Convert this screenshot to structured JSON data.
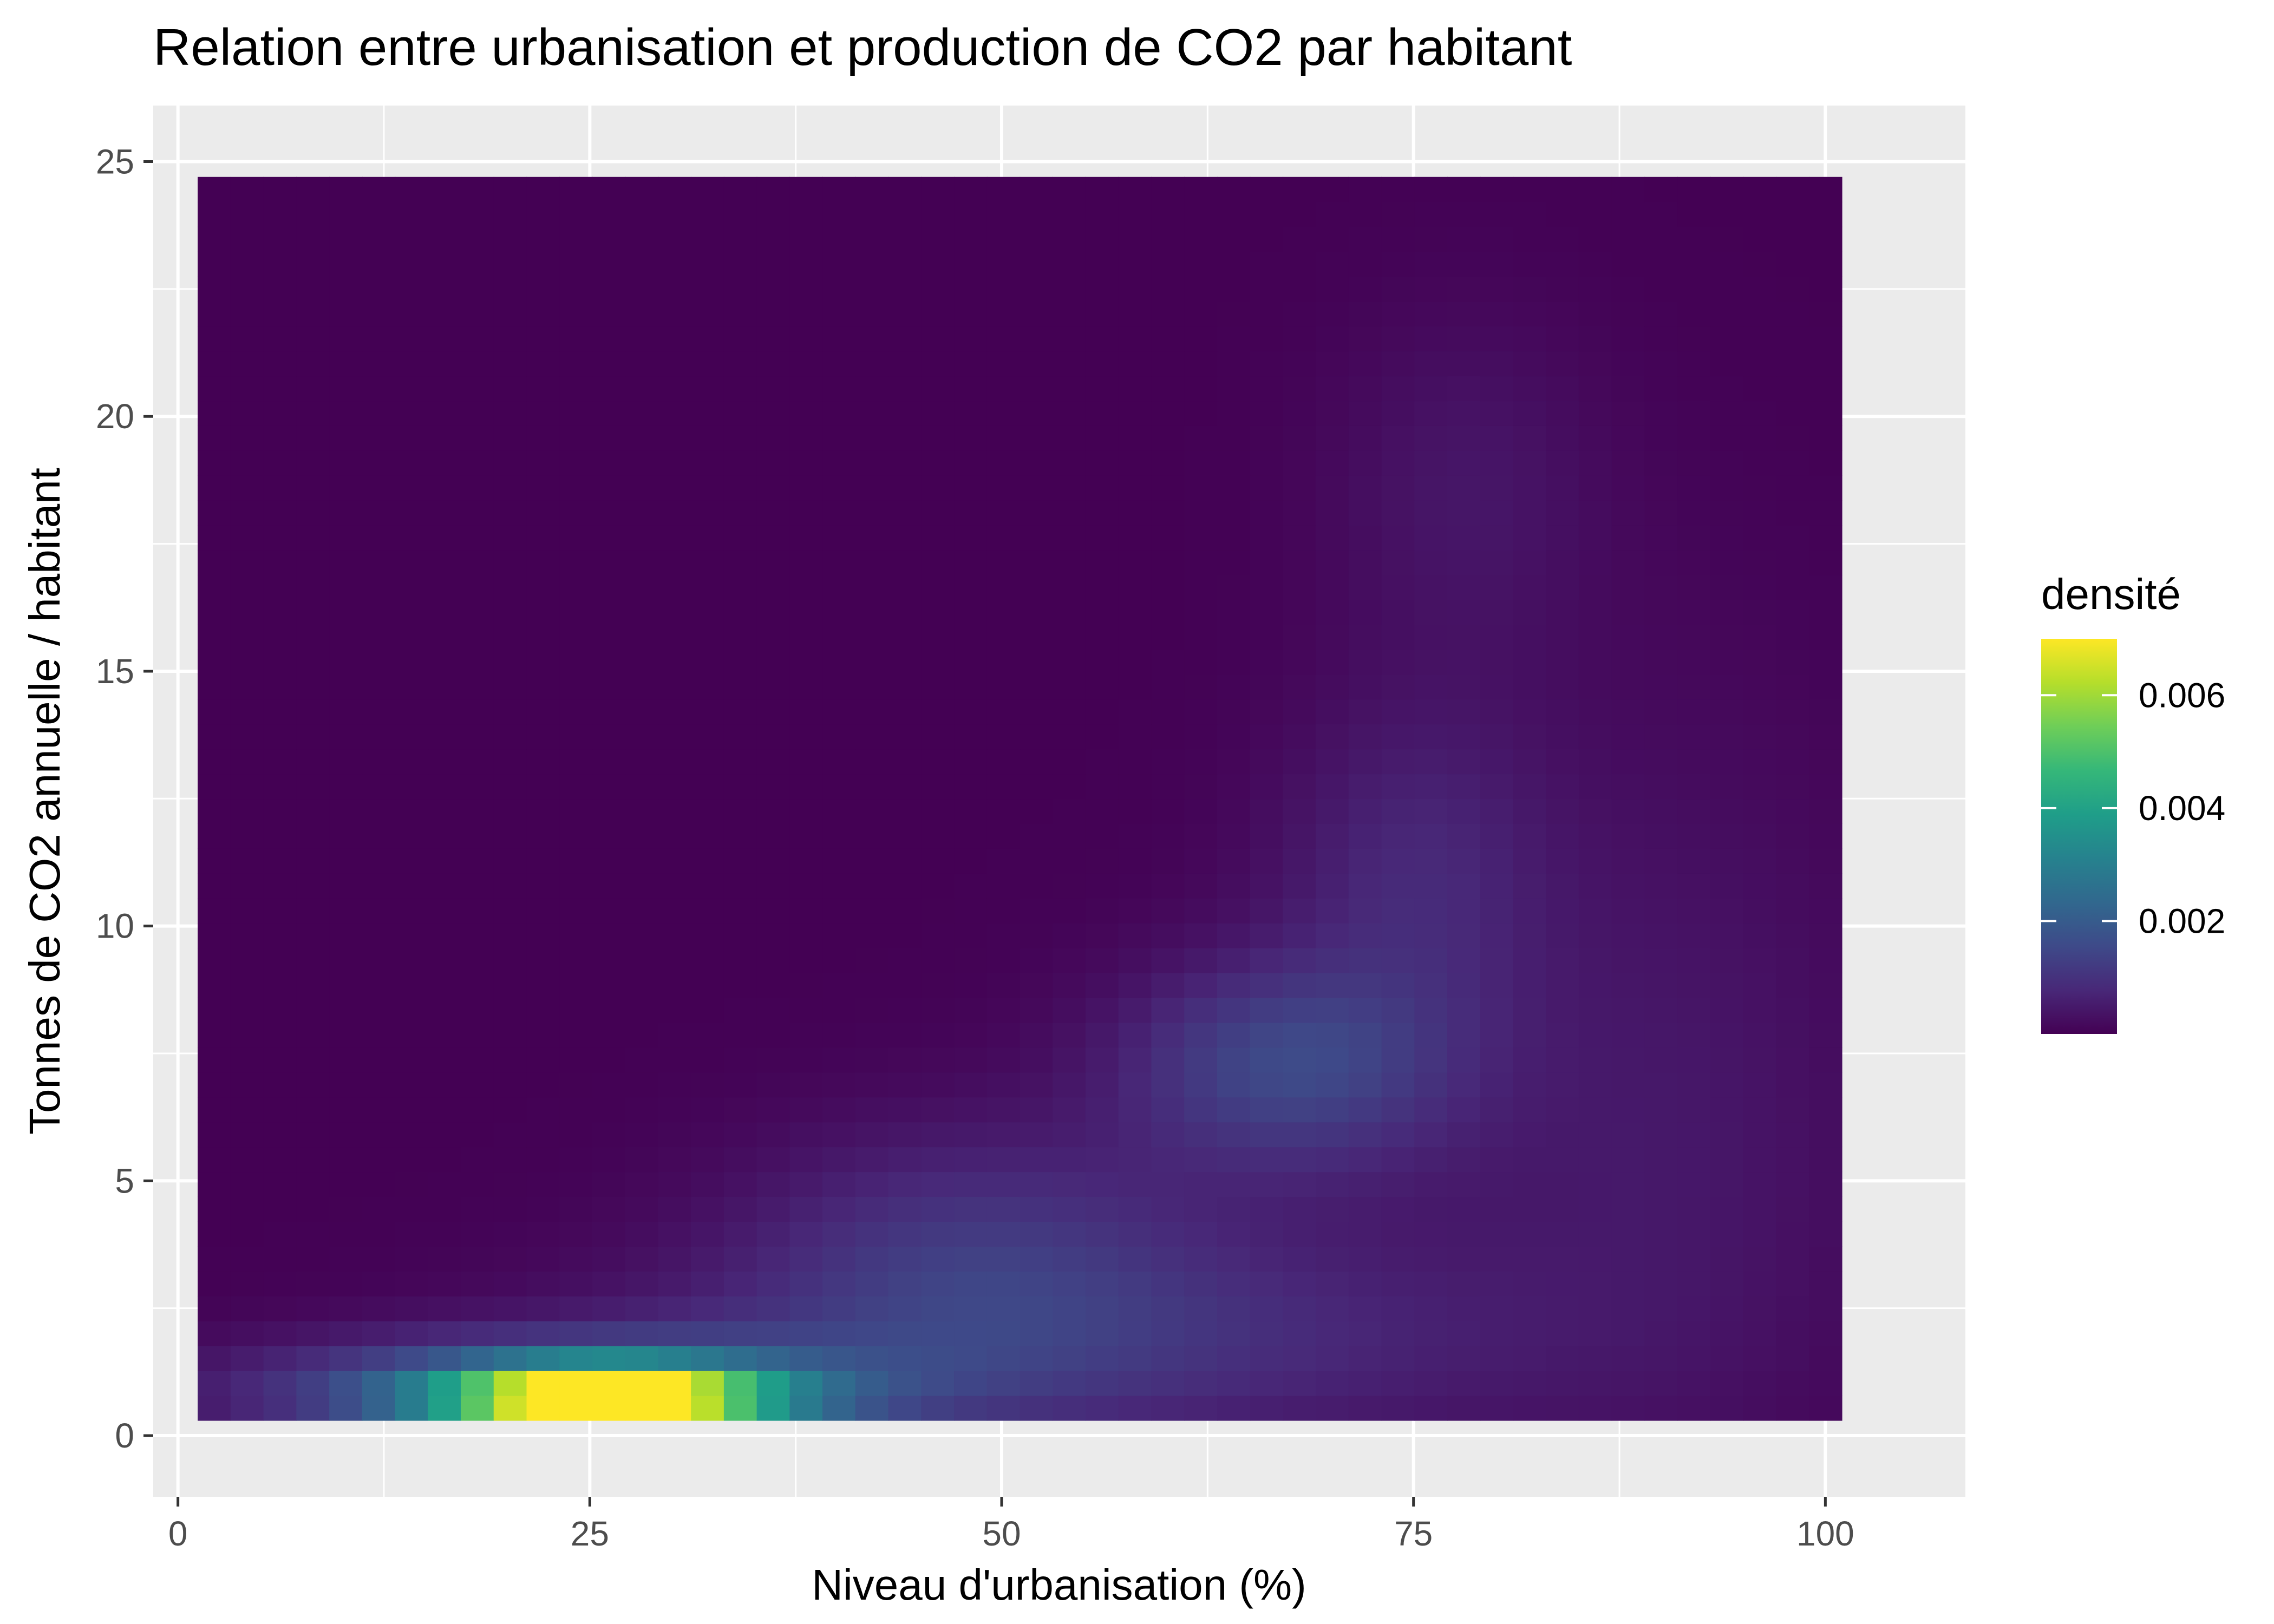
{
  "chart_data": {
    "type": "heatmap",
    "title": "Relation entre urbanisation et production de CO2 par habitant",
    "xlabel": "Niveau d'urbanisation (%)",
    "ylabel": "Tonnes de CO2 annuelle / habitant",
    "xlim": [
      -1.5,
      108.5
    ],
    "ylim": [
      -1.2,
      26.1
    ],
    "x_ticks": [
      0,
      25,
      50,
      75,
      100
    ],
    "y_ticks": [
      0,
      5,
      10,
      15,
      20,
      25
    ],
    "x_tick_labels": [
      "0",
      "25",
      "50",
      "75",
      "100"
    ],
    "y_tick_labels": [
      "0",
      "5",
      "10",
      "15",
      "20",
      "25"
    ],
    "grid": true,
    "legend": {
      "title": "densité",
      "position": "right",
      "breaks": [
        0.002,
        0.004,
        0.006
      ],
      "labels": [
        "0.002",
        "0.004",
        "0.006"
      ],
      "range": [
        0.0,
        0.007
      ]
    },
    "palette": "viridis",
    "tile_grid": {
      "x_range": [
        1.2,
        101.0
      ],
      "y_range": [
        0.3,
        24.7
      ],
      "nx": 50,
      "ny": 50
    },
    "density_components": [
      {
        "x": 26,
        "y": 0.75,
        "sx": 6.5,
        "sy": 0.42,
        "weight": 0.0072
      },
      {
        "x": 24,
        "y": 0.85,
        "sx": 13,
        "sy": 0.75,
        "weight": 0.0024
      },
      {
        "x": 52,
        "y": 1.8,
        "sx": 18,
        "sy": 1.4,
        "weight": 0.0009
      },
      {
        "x": 48,
        "y": 3.8,
        "sx": 10,
        "sy": 1.7,
        "weight": 0.0009
      },
      {
        "x": 67,
        "y": 7.3,
        "sx": 7,
        "sy": 1.4,
        "weight": 0.0013
      },
      {
        "x": 75,
        "y": 11,
        "sx": 6,
        "sy": 2.4,
        "weight": 0.0007
      },
      {
        "x": 78,
        "y": 18.5,
        "sx": 6,
        "sy": 2.5,
        "weight": 0.0004
      },
      {
        "x": 80,
        "y": 4.5,
        "sx": 15,
        "sy": 4,
        "weight": 0.0003
      },
      {
        "x": 92,
        "y": 8,
        "sx": 8,
        "sy": 6,
        "weight": 0.00025
      }
    ],
    "colors": {
      "panel_background": "#ebebeb",
      "grid_line": "#ffffff",
      "tick_mark": "#333333",
      "viridis_stops": [
        "#440154",
        "#482878",
        "#3e4a89",
        "#31688e",
        "#26828e",
        "#1f9e89",
        "#35b779",
        "#6ece58",
        "#b5de2b",
        "#fde725"
      ]
    }
  }
}
